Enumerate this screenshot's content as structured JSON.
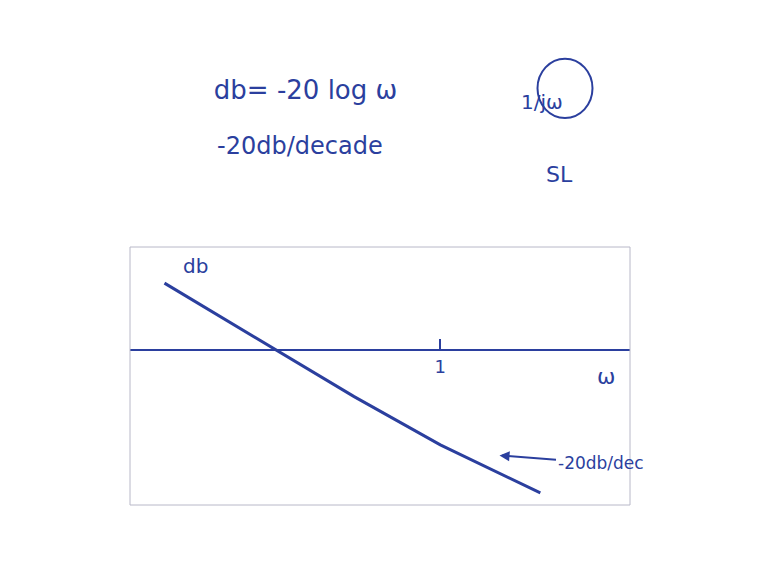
{
  "chart_data": {
    "type": "line",
    "title": "db= -20 log ω",
    "subtitle": "-20db/decade",
    "x_label": "ω",
    "y_label": "db",
    "annotations": [
      "1/jω",
      "SL",
      "-20db/dec"
    ],
    "x": [
      -0.6,
      0,
      0.5,
      1,
      1.58
    ],
    "values": [
      0.39,
      0.03,
      -0.27,
      -0.55,
      -0.83
    ],
    "color": "#2b3f9e",
    "xlim": [
      -0.8,
      2.1
    ],
    "xticks": [
      1
    ],
    "ylim": [
      -0.9,
      0.6
    ],
    "yticks": [],
    "tick_labels": "x",
    "grid": false
  }
}
